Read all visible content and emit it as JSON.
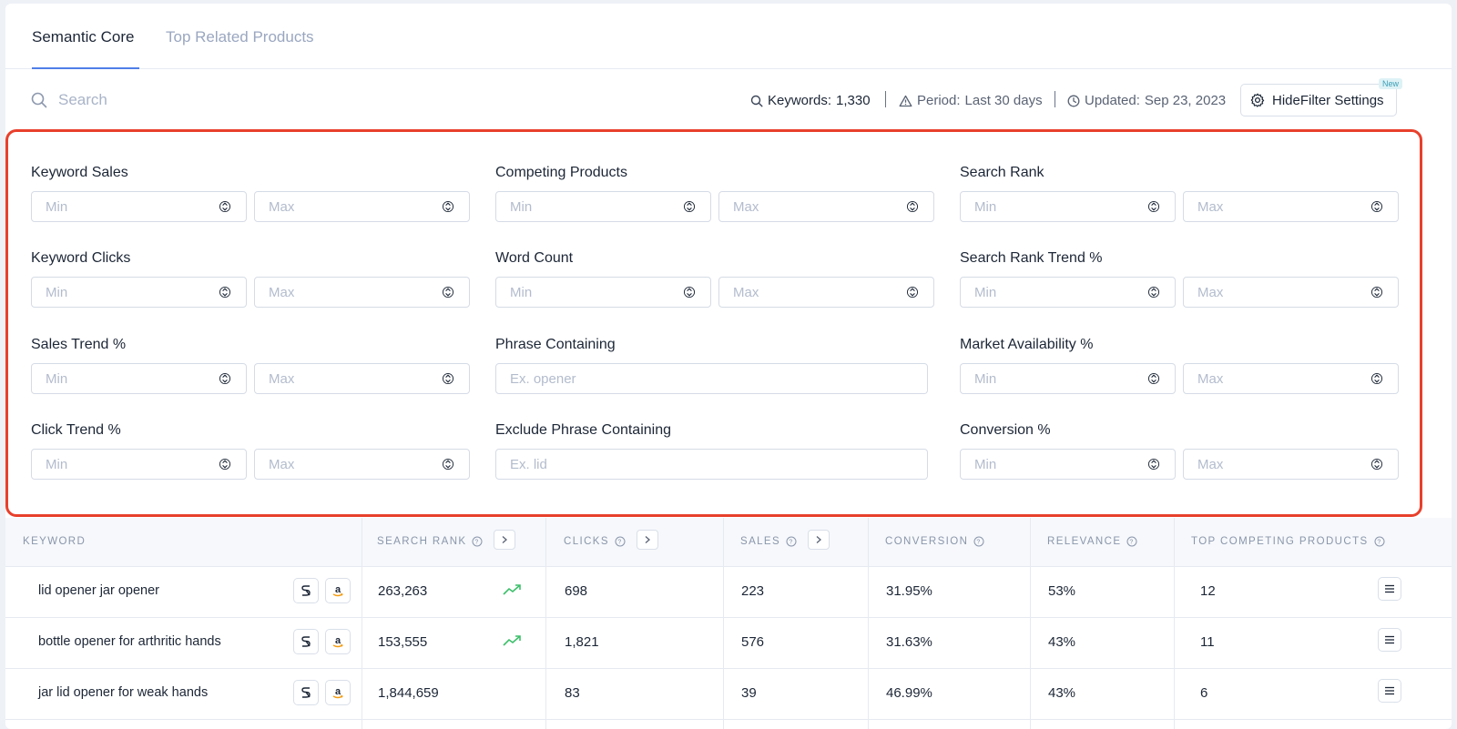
{
  "tabs": [
    {
      "label": "Semantic Core",
      "active": true
    },
    {
      "label": "Top Related Products",
      "active": false
    }
  ],
  "search": {
    "placeholder": "Search",
    "value": ""
  },
  "meta": {
    "keywords_label": "Keywords:",
    "keywords_value": "1,330",
    "period_label": "Period:",
    "period_value": "Last 30 days",
    "updated_label": "Updated:",
    "updated_value": "Sep 23, 2023"
  },
  "toolbar": {
    "hide_filter_label": "HideFilter Settings",
    "new_badge": "New"
  },
  "filters": {
    "min_placeholder": "Min",
    "max_placeholder": "Max",
    "keyword_sales": "Keyword Sales",
    "keyword_clicks": "Keyword Clicks",
    "sales_trend": "Sales Trend %",
    "click_trend": "Click Trend %",
    "competing_products": "Competing Products",
    "word_count": "Word Count",
    "phrase_containing": "Phrase Containing",
    "phrase_placeholder": "Ex. opener",
    "exclude_phrase": "Exclude Phrase Containing",
    "exclude_placeholder": "Ex. lid",
    "search_rank": "Search Rank",
    "search_rank_trend": "Search Rank Trend %",
    "market_availability": "Market Availability %",
    "conversion": "Conversion %"
  },
  "table": {
    "headers": {
      "keyword": "KEYWORD",
      "search_rank": "SEARCH RANK",
      "clicks": "CLICKS",
      "sales": "SALES",
      "conversion": "CONVERSION",
      "relevance": "RELEVANCE",
      "top_competing": "TOP COMPETING PRODUCTS"
    },
    "rows": [
      {
        "keyword": "lid opener jar opener",
        "search_rank": "263,263",
        "trend": "up",
        "clicks": "698",
        "sales": "223",
        "conversion": "31.95%",
        "relevance": "53%",
        "top_competing": "12"
      },
      {
        "keyword": "bottle opener for arthritic hands",
        "search_rank": "153,555",
        "trend": "up",
        "clicks": "1,821",
        "sales": "576",
        "conversion": "31.63%",
        "relevance": "43%",
        "top_competing": "11"
      },
      {
        "keyword": "jar lid opener for weak hands",
        "search_rank": "1,844,659",
        "trend": "",
        "clicks": "83",
        "sales": "39",
        "conversion": "46.99%",
        "relevance": "43%",
        "top_competing": "6"
      }
    ]
  },
  "colors": {
    "accent": "#4f7fe8",
    "highlight_border": "#e8402c",
    "trend_up": "#3cbf6a",
    "amazon": "#f39c12"
  }
}
